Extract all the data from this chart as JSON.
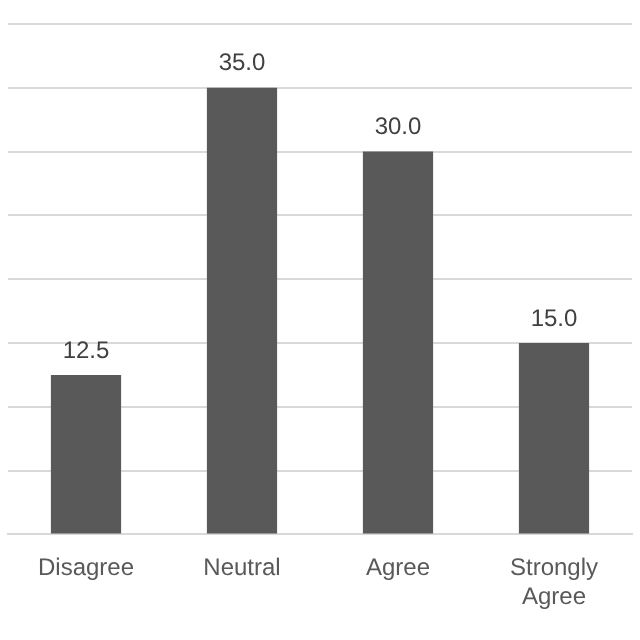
{
  "chart_data": {
    "type": "bar",
    "categories": [
      "Disagree",
      "Neutral",
      "Agree",
      "Strongly Agree"
    ],
    "values": [
      12.5,
      35.0,
      30.0,
      15.0
    ],
    "color": "#595959",
    "value_labels": [
      "12.5",
      "35.0",
      "30.0",
      "15.0"
    ],
    "ylim": [
      0,
      40
    ],
    "yticks": [
      {
        "value": 0,
        "label": null
      },
      {
        "value": 5,
        "label": null
      },
      {
        "value": 10,
        "label": null
      },
      {
        "value": 15,
        "label": null
      },
      {
        "value": 20,
        "label": null
      },
      {
        "value": 25,
        "label": null
      },
      {
        "value": 30,
        "label": null
      },
      {
        "value": 35,
        "label": null
      },
      {
        "value": 40,
        "label": null
      }
    ],
    "grid": "y",
    "tick_labels": "x",
    "legend": false
  }
}
